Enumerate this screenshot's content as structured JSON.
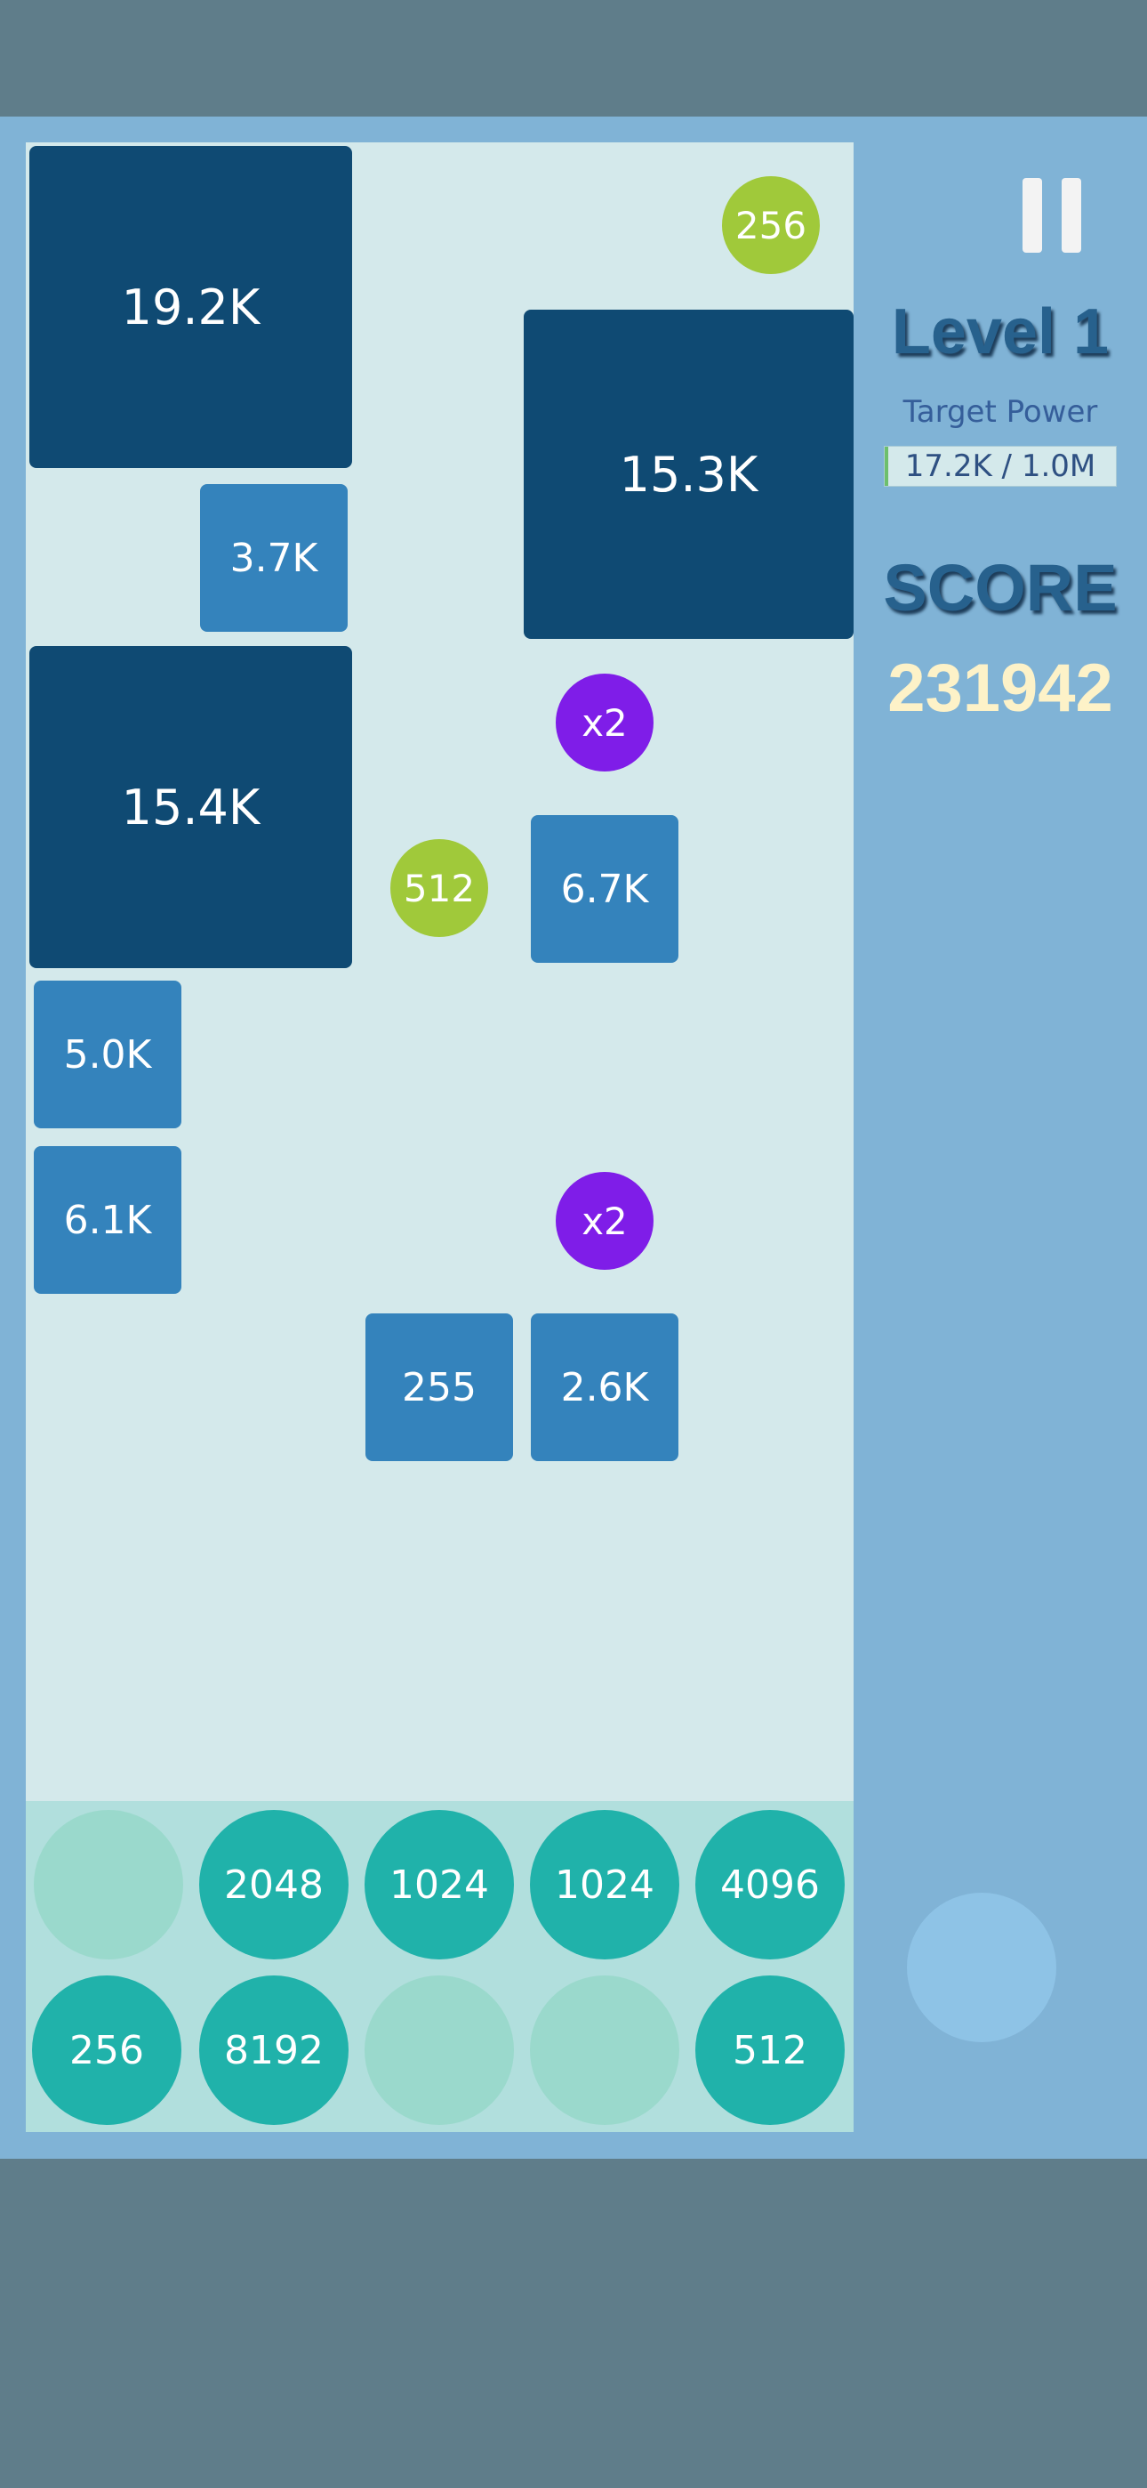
{
  "colors": {
    "big_tile": "#0f4a73",
    "small_tile": "#3483bc",
    "green_ball": "#a0c93a",
    "purple_ball": "#7f1de8",
    "tray_ball": "#20b2aa",
    "empty_slot": "#9ad9cc"
  },
  "board": {
    "tiles": {
      "t1": "19.2K",
      "t2": "15.3K",
      "t3": "3.7K",
      "t4": "15.4K",
      "t5": "6.7K",
      "t6": "5.0K",
      "t7": "6.1K",
      "t8": "255",
      "t9": "2.6K"
    },
    "balls": {
      "b1": "256",
      "b2": "x2",
      "b3": "512",
      "b4": "x2"
    }
  },
  "tray": {
    "row1": [
      "",
      "2048",
      "1024",
      "1024",
      "4096"
    ],
    "row2": [
      "256",
      "8192",
      "",
      "",
      "512"
    ]
  },
  "hud": {
    "level": "Level 1",
    "target_label": "Target Power",
    "target_value": "17.2K / 1.0M",
    "target_progress": 0.0172,
    "score_label": "SCORE",
    "score": "231942"
  },
  "icons": {
    "pause": "pause-icon"
  }
}
